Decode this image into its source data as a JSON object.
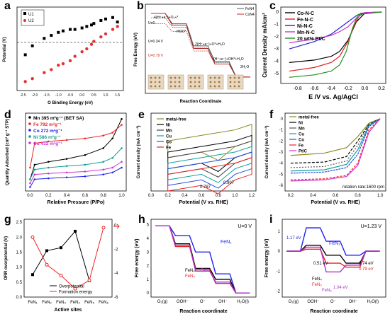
{
  "panels": [
    {
      "id": "a",
      "label": "a",
      "type": "scatter",
      "xlabel": "O Binding Energy (eV)",
      "ylabel": "Potential (V)",
      "xticks": [
        "-2.5",
        "-2.0",
        "-1.5",
        "-1.0",
        "-0.5",
        "0.0",
        "0.5",
        "1.0",
        "1.5"
      ],
      "legend": [
        "U1",
        "U2"
      ],
      "series": [
        {
          "name": "U1",
          "color": "#000000",
          "x": [
            -2.4,
            -2.1,
            -1.6,
            -1.3,
            -1.0,
            -0.8,
            -0.5,
            -0.3,
            0.0,
            0.2,
            0.4,
            0.5,
            0.8,
            1.0,
            1.3,
            1.5
          ],
          "y": [
            0.0,
            0.3,
            0.55,
            0.65,
            0.75,
            0.8,
            0.85,
            0.85,
            0.9,
            0.95,
            1.0,
            1.05,
            1.15,
            1.2,
            1.25,
            1.1
          ]
        },
        {
          "name": "U2",
          "color": "#e53030",
          "x": [
            -2.4,
            -2.1,
            -1.6,
            -1.3,
            -1.0,
            -0.8,
            -0.5,
            -0.3,
            0.0,
            0.2,
            0.4,
            0.5,
            0.8,
            1.0,
            1.3,
            1.5
          ],
          "y": [
            -0.9,
            -0.8,
            -0.6,
            -0.5,
            -0.35,
            -0.3,
            -0.2,
            -0.05,
            0.1,
            0.2,
            0.35,
            0.45,
            0.6,
            0.7,
            0.85,
            0.95
          ]
        }
      ]
    },
    {
      "id": "b",
      "label": "b",
      "type": "line",
      "xlabel": "Reaction Coordinate",
      "ylabel": "Free Energy (eV)",
      "legend": [
        "FeN4",
        "CoN4"
      ],
      "annotations": [
        "4(H⁺+e⁻)+O₂+*",
        "HOO*",
        "2(H⁺+e⁻)+O*+H₂O",
        "(H⁺+e⁻)+OH*+H₂O",
        "2H₂O",
        "U=0",
        "U=0.34 V",
        "U=0.79 V"
      ],
      "series": [
        {
          "name": "FeN4",
          "color": "#555555",
          "y": [
            4.9,
            4.1,
            2.4,
            1.2,
            0.0
          ]
        },
        {
          "name": "CoN4",
          "color": "#cc2020",
          "y": [
            4.9,
            4.0,
            2.2,
            1.0,
            0.0
          ]
        }
      ]
    },
    {
      "id": "c",
      "label": "c",
      "type": "line",
      "xlabel": "E /V vs. Ag/AgCl",
      "ylabel": "Current Density mA/cm²",
      "xticks": [
        "-0.8",
        "-0.6",
        "-0.4",
        "-0.2",
        "0.0",
        "0.2"
      ],
      "yticks": [
        "0",
        "-1",
        "-2",
        "-3",
        "-4",
        "-5"
      ],
      "legend": [
        "Co-N-C",
        "Fe-N-C",
        "Ni-N-C",
        "Mn-N-C",
        "20 wt% Pt/C"
      ],
      "series": [
        {
          "name": "Co-N-C",
          "color": "#000000",
          "x": [
            -0.9,
            -0.6,
            -0.4,
            -0.3,
            -0.2,
            -0.1,
            0.0,
            0.2
          ],
          "y": [
            -4.1,
            -3.9,
            -3.6,
            -3.2,
            -2.3,
            -0.8,
            -0.1,
            0
          ]
        },
        {
          "name": "Fe-N-C",
          "color": "#e02020",
          "x": [
            -0.9,
            -0.6,
            -0.4,
            -0.3,
            -0.2,
            -0.12,
            -0.05,
            0.2
          ],
          "y": [
            -4.8,
            -4.5,
            -4.1,
            -3.6,
            -2.4,
            -1.0,
            -0.1,
            0
          ]
        },
        {
          "name": "Ni-N-C",
          "color": "#2020dd",
          "x": [
            -0.9,
            -0.6,
            -0.4,
            -0.3,
            -0.2,
            -0.1,
            0.0,
            0.2
          ],
          "y": [
            -3.0,
            -2.4,
            -1.8,
            -1.3,
            -0.8,
            -0.3,
            -0.05,
            0
          ]
        },
        {
          "name": "Mn-N-C",
          "color": "#cc33cc",
          "x": [
            -0.9,
            -0.6,
            -0.4,
            -0.3,
            -0.2,
            -0.1,
            0.0,
            0.2
          ],
          "y": [
            -2.5,
            -2.2,
            -1.9,
            -1.6,
            -1.2,
            -0.5,
            -0.05,
            0
          ]
        },
        {
          "name": "20 wt% Pt/C",
          "color": "#209020",
          "x": [
            -0.9,
            -0.6,
            -0.4,
            -0.3,
            -0.22,
            -0.15,
            -0.08,
            0.2
          ],
          "y": [
            -5.3,
            -5.1,
            -4.8,
            -4.3,
            -3.2,
            -1.4,
            -0.2,
            0
          ]
        }
      ]
    },
    {
      "id": "d",
      "label": "d",
      "type": "line",
      "xlabel": "Relative Pressure (P/Po)",
      "ylabel": "Quantity Adsorbed (cm³ g⁻¹ STP)",
      "xticks": [
        "0.0",
        "0.2",
        "0.4",
        "0.6",
        "0.8",
        "1.0"
      ],
      "legend": [
        "Mn  395 m²g⁻¹ (BET SA)",
        "Fe  792 m²g⁻¹",
        "Co  272 m²g⁻¹",
        "Ni  586 m²g⁻¹",
        "Cu  432 m²g⁻¹"
      ],
      "series": [
        {
          "name": "Mn",
          "color": "#000000",
          "x": [
            0,
            0.05,
            0.2,
            0.4,
            0.6,
            0.8,
            0.9,
            1.0
          ],
          "y": [
            60,
            135,
            150,
            165,
            185,
            220,
            270,
            370
          ]
        },
        {
          "name": "Fe",
          "color": "#ee2222",
          "x": [
            0,
            0.05,
            0.2,
            0.4,
            0.6,
            0.8,
            0.9,
            1.0
          ],
          "y": [
            120,
            245,
            255,
            262,
            270,
            285,
            300,
            340
          ]
        },
        {
          "name": "Co",
          "color": "#2222ee",
          "x": [
            0,
            0.05,
            0.2,
            0.4,
            0.6,
            0.8,
            0.9,
            1.0
          ],
          "y": [
            20,
            60,
            65,
            70,
            75,
            85,
            95,
            120
          ]
        },
        {
          "name": "Ni",
          "color": "#10a090",
          "x": [
            0,
            0.05,
            0.2,
            0.4,
            0.6,
            0.8,
            0.9,
            1.0
          ],
          "y": [
            60,
            110,
            120,
            128,
            135,
            150,
            170,
            220
          ]
        },
        {
          "name": "Cu",
          "color": "#cc33cc",
          "x": [
            0,
            0.05,
            0.2,
            0.4,
            0.6,
            0.8,
            0.9,
            1.0
          ],
          "y": [
            40,
            85,
            90,
            95,
            100,
            110,
            120,
            150
          ]
        }
      ]
    },
    {
      "id": "e",
      "label": "e",
      "type": "line",
      "xlabel": "Potential (V vs. RHE)",
      "ylabel": "Current density (mA cm⁻²)",
      "xticks": [
        "0.0",
        "0.2",
        "0.4",
        "0.6",
        "0.8",
        "1.0",
        "1.2"
      ],
      "legend": [
        "metal-free",
        "Ni",
        "Mn",
        "Cu",
        "Co",
        "Fe"
      ],
      "annotations": [
        "0.787",
        "0.907"
      ],
      "series": [
        {
          "name": "metal-free",
          "color": "#8a8a20",
          "x": [
            0.2,
            0.4,
            0.6,
            0.8,
            1.0,
            1.2
          ],
          "y": [
            6,
            6.5,
            7,
            7.5,
            8,
            9
          ]
        },
        {
          "name": "Ni",
          "color": "#000000",
          "x": [
            0.2,
            0.4,
            0.6,
            0.8,
            1.0,
            1.2
          ],
          "y": [
            4,
            4.5,
            5,
            5.5,
            6,
            7
          ]
        },
        {
          "name": "Mn",
          "color": "#444444",
          "x": [
            0.2,
            0.4,
            0.6,
            0.8,
            1.0,
            1.2
          ],
          "y": [
            3,
            3.5,
            4,
            4.5,
            5,
            6
          ]
        },
        {
          "name": "Cu",
          "color": "#10a0a0",
          "x": [
            0.2,
            0.4,
            0.6,
            0.8,
            1.0,
            1.2
          ],
          "y": [
            2,
            2.5,
            3,
            3.5,
            4,
            5
          ]
        },
        {
          "name": "Co",
          "color": "#2050dd",
          "x": [
            0.2,
            0.4,
            0.6,
            0.8,
            1.0,
            1.2
          ],
          "y": [
            1,
            1.5,
            2,
            2.5,
            3,
            4
          ]
        },
        {
          "name": "Fe",
          "color": "#ee2222",
          "x": [
            0.2,
            0.4,
            0.6,
            0.8,
            1.0,
            1.2
          ],
          "y": [
            0,
            0.5,
            1,
            1.5,
            2,
            3
          ]
        }
      ]
    },
    {
      "id": "f",
      "label": "f",
      "type": "line",
      "xlabel": "Potential (V vs. RHE)",
      "ylabel": "Current density (mA cm⁻²)",
      "xticks": [
        "0.2",
        "0.4",
        "0.6",
        "0.8",
        "1.0"
      ],
      "yticks": [
        "0",
        "-1",
        "-2",
        "-3",
        "-4",
        "-5",
        "-6"
      ],
      "legend": [
        "metal-free",
        "Ni",
        "Mn",
        "Cu",
        "Co",
        "Fe",
        "Pt/C"
      ],
      "annotations": [
        "rotation rate:1600 rpm"
      ],
      "series": [
        {
          "name": "metal-free",
          "color": "#8a8a20",
          "x": [
            0.2,
            0.5,
            0.7,
            0.8,
            0.9,
            1.0
          ],
          "y": [
            -3.3,
            -3.1,
            -2.6,
            -1.6,
            -0.4,
            0
          ]
        },
        {
          "name": "Ni",
          "color": "#000000",
          "x": [
            0.2,
            0.5,
            0.7,
            0.8,
            0.9,
            1.0
          ],
          "y": [
            -4.0,
            -3.9,
            -3.4,
            -2.0,
            -0.5,
            0
          ]
        },
        {
          "name": "Mn",
          "color": "#555555",
          "x": [
            0.2,
            0.5,
            0.7,
            0.8,
            0.9,
            1.0
          ],
          "y": [
            -4.4,
            -4.3,
            -3.8,
            -2.4,
            -0.5,
            0
          ]
        },
        {
          "name": "Cu",
          "color": "#10a0a0",
          "x": [
            0.2,
            0.5,
            0.7,
            0.8,
            0.9,
            1.0
          ],
          "y": [
            -4.7,
            -4.6,
            -4.1,
            -2.8,
            -0.6,
            0
          ]
        },
        {
          "name": "Co",
          "color": "#2050dd",
          "x": [
            0.2,
            0.5,
            0.7,
            0.8,
            0.9,
            1.0
          ],
          "y": [
            -4.9,
            -4.8,
            -4.4,
            -3.2,
            -0.7,
            0
          ]
        },
        {
          "name": "Fe",
          "color": "#ee2222",
          "x": [
            0.2,
            0.5,
            0.7,
            0.8,
            0.9,
            1.0
          ],
          "y": [
            -5.5,
            -5.4,
            -5.1,
            -4.0,
            -1.0,
            0
          ]
        },
        {
          "name": "Pt/C",
          "color": "#cc33cc",
          "x": [
            0.2,
            0.5,
            0.7,
            0.8,
            0.9,
            1.0
          ],
          "y": [
            -5.6,
            -5.5,
            -5.2,
            -4.2,
            -1.2,
            0
          ]
        }
      ]
    },
    {
      "id": "g",
      "label": "g",
      "type": "line",
      "xlabel": "Active sites",
      "ylabel": "ORR overpotential (V)",
      "y2label": "Formation energy",
      "categories": [
        "FeN₁",
        "FeN₂",
        "FeN₃",
        "FeN₄",
        "FeN₅",
        "FeN₆"
      ],
      "yticks": [
        "0.0",
        "0.5",
        "1.0",
        "1.5",
        "2.0",
        "2.5"
      ],
      "y2ticks": [
        "0",
        "-2",
        "-4",
        "-6"
      ],
      "legend": [
        "Overpotential",
        "Formation energy"
      ],
      "series": [
        {
          "name": "Overpotential",
          "color": "#000000",
          "values": [
            0.75,
            1.55,
            1.65,
            2.2,
            0.55,
            null
          ]
        },
        {
          "name": "Formation energy",
          "color": "#ee2222",
          "values": [
            -1.0,
            -3.3,
            -4.2,
            -5.3,
            -4.6,
            -0.2
          ]
        }
      ]
    },
    {
      "id": "h",
      "label": "h",
      "type": "line",
      "xlabel": "Reaction coordinate",
      "ylabel": "Free energy (eV)",
      "categories": [
        "O₂(g)",
        "OOH⁻",
        "O⁻",
        "OH⁻",
        "H₂O(l)"
      ],
      "yticks": [
        "0",
        "1",
        "2",
        "3",
        "4",
        "5"
      ],
      "annotation": "U=0 V",
      "labels": [
        "FeN₁",
        "FeN₄",
        "FeN₅",
        "FeN₆"
      ],
      "series": [
        {
          "name": "FeN₁",
          "color": "#2020ee",
          "values": [
            4.92,
            4.2,
            3.0,
            1.4,
            0
          ]
        },
        {
          "name": "FeN₄",
          "color": "#000000",
          "values": [
            4.92,
            3.6,
            1.8,
            1.0,
            0
          ]
        },
        {
          "name": "FeN₅",
          "color": "#ee2222",
          "values": [
            4.92,
            3.4,
            1.7,
            0.7,
            0
          ]
        },
        {
          "name": "FeN₆",
          "color": "#aa33cc",
          "values": [
            4.92,
            3.5,
            1.6,
            0.8,
            0
          ]
        }
      ]
    },
    {
      "id": "i",
      "label": "i",
      "type": "line",
      "xlabel": "Reaction coordinate",
      "ylabel": "Free energy (eV)",
      "categories": [
        "O₂(g)",
        "OOH⁻",
        "O⁻",
        "OH⁻",
        "H₂O(l)"
      ],
      "yticks": [
        "-2",
        "-1",
        "0",
        "1"
      ],
      "annotation": "U=1.23 V",
      "labels": [
        "FeN₁",
        "FeN₄",
        "FeN₅",
        "FeN₆"
      ],
      "value_labels": [
        "1.17 eV",
        "0.51 eV",
        "1.04 eV",
        "0.74 eV",
        "0.79 eV"
      ],
      "series": [
        {
          "name": "FeN₁",
          "color": "#2020ee",
          "values": [
            0,
            1.17,
            0.5,
            -0.2,
            0
          ]
        },
        {
          "name": "FeN₄",
          "color": "#000000",
          "values": [
            0,
            0.3,
            -0.2,
            -0.6,
            0
          ]
        },
        {
          "name": "FeN₅",
          "color": "#ee2222",
          "values": [
            0,
            0.1,
            -0.6,
            -0.8,
            0
          ]
        },
        {
          "name": "FeN₆",
          "color": "#aa33cc",
          "values": [
            0,
            0.2,
            -1.04,
            -0.7,
            0
          ]
        }
      ]
    }
  ]
}
